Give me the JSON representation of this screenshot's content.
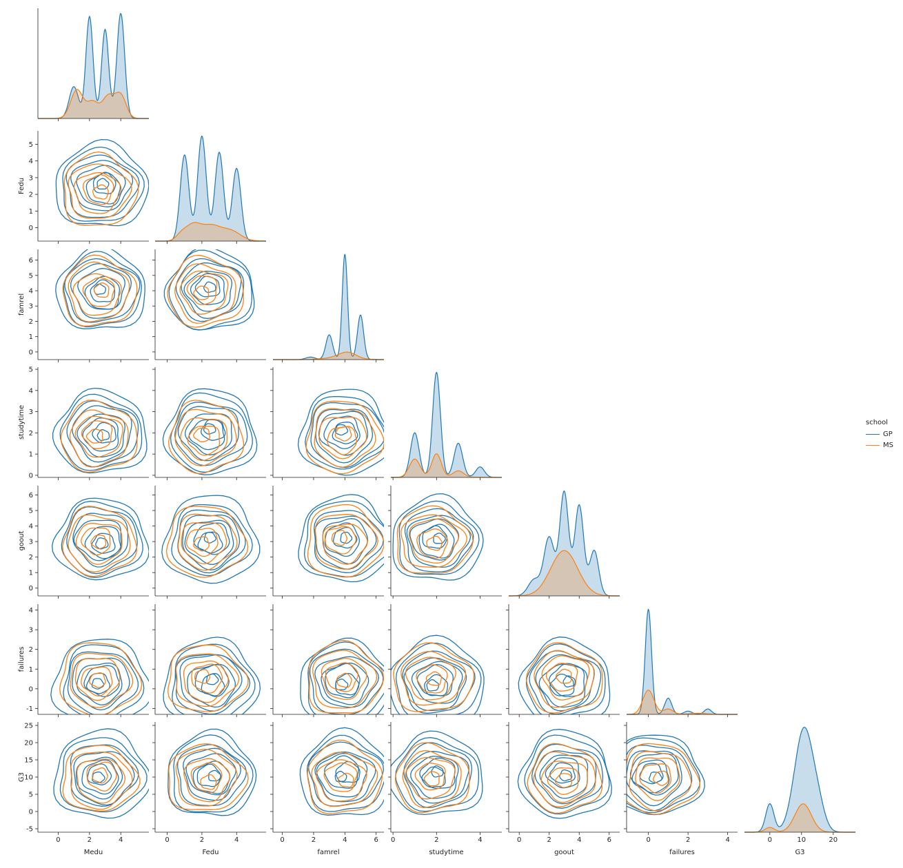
{
  "chart_data": {
    "type": "pairplot",
    "kind": "kde",
    "corner": true,
    "hue": "school",
    "legend": {
      "title": "school",
      "placement": "right",
      "entries": [
        {
          "name": "GP",
          "color": "#1f77b4"
        },
        {
          "name": "MS",
          "color": "#ff7f0e"
        }
      ]
    },
    "grid": false,
    "variables": [
      {
        "name": "Medu",
        "lim": [
          -1,
          6
        ],
        "ticks": [
          0,
          2,
          4
        ]
      },
      {
        "name": "Fedu",
        "lim": [
          -0.8,
          5.8
        ],
        "ticks": [
          0,
          1,
          2,
          3,
          4,
          5
        ]
      },
      {
        "name": "famrel",
        "lim": [
          -0.5,
          6.7
        ],
        "ticks": [
          0,
          1,
          2,
          3,
          4,
          5,
          6
        ]
      },
      {
        "name": "studytime",
        "lim": [
          -0.1,
          5.1
        ],
        "ticks": [
          0,
          1,
          2,
          3,
          4,
          5
        ]
      },
      {
        "name": "goout",
        "lim": [
          -0.5,
          6.6
        ],
        "ticks": [
          0,
          1,
          2,
          3,
          4,
          5,
          6
        ]
      },
      {
        "name": "failures",
        "lim": [
          -1.3,
          4.3
        ],
        "ticks": [
          -1,
          0,
          1,
          2,
          3,
          4
        ]
      },
      {
        "name": "G3",
        "lim": [
          -6,
          26
        ],
        "ticks": [
          -5,
          0,
          5,
          10,
          15,
          20,
          25
        ]
      }
    ],
    "bottom_ticks": [
      [
        0,
        2,
        4
      ],
      [
        0,
        2,
        4
      ],
      [
        0,
        2,
        4,
        6
      ],
      [
        0,
        2,
        4
      ],
      [
        0,
        2,
        4,
        6
      ],
      [
        0,
        2,
        4
      ],
      [
        0,
        10,
        20
      ]
    ],
    "diag_xlim": [
      [
        -1.3,
        5.8
      ],
      [
        -0.7,
        5.7
      ],
      [
        -0.6,
        6.5
      ],
      [
        -0.1,
        5.0
      ],
      [
        -0.7,
        6.7
      ],
      [
        -1.1,
        4.5
      ],
      [
        -8,
        27
      ]
    ],
    "diagonal": [
      {
        "variable": "Medu",
        "series": [
          {
            "name": "GP",
            "modes": [
              [
                1.0,
                0.1,
                0.3
              ],
              [
                2.0,
                0.32,
                0.23
              ],
              [
                3.0,
                0.28,
                0.23
              ],
              [
                4.0,
                0.33,
                0.25
              ]
            ]
          },
          {
            "name": "MS",
            "modes": [
              [
                1.2,
                0.09,
                0.4
              ],
              [
                2.2,
                0.05,
                0.35
              ],
              [
                3.2,
                0.07,
                0.4
              ],
              [
                4.0,
                0.07,
                0.35
              ]
            ]
          }
        ]
      },
      {
        "variable": "Fedu",
        "series": [
          {
            "name": "GP",
            "modes": [
              [
                1.0,
                0.32,
                0.25
              ],
              [
                2.0,
                0.39,
                0.25
              ],
              [
                3.0,
                0.33,
                0.25
              ],
              [
                4.0,
                0.27,
                0.25
              ]
            ]
          },
          {
            "name": "MS",
            "modes": [
              [
                0.8,
                0.02,
                0.3
              ],
              [
                1.5,
                0.06,
                0.45
              ],
              [
                2.5,
                0.05,
                0.5
              ],
              [
                3.6,
                0.04,
                0.6
              ]
            ]
          }
        ]
      },
      {
        "variable": "famrel",
        "series": [
          {
            "name": "GP",
            "modes": [
              [
                1.8,
                0.02,
                0.3
              ],
              [
                3.0,
                0.2,
                0.22
              ],
              [
                4.0,
                0.85,
                0.17
              ],
              [
                5.0,
                0.36,
                0.2
              ]
            ]
          },
          {
            "name": "MS",
            "modes": [
              [
                3.5,
                0.015,
                0.8
              ],
              [
                4.2,
                0.05,
                0.55
              ]
            ]
          }
        ]
      },
      {
        "variable": "studytime",
        "series": [
          {
            "name": "GP",
            "modes": [
              [
                1.0,
                0.34,
                0.2
              ],
              [
                2.0,
                0.8,
                0.18
              ],
              [
                3.0,
                0.26,
                0.2
              ],
              [
                4.0,
                0.08,
                0.2
              ]
            ]
          },
          {
            "name": "MS",
            "modes": [
              [
                1.0,
                0.14,
                0.25
              ],
              [
                2.0,
                0.18,
                0.22
              ],
              [
                3.0,
                0.05,
                0.25
              ]
            ]
          }
        ]
      },
      {
        "variable": "goout",
        "series": [
          {
            "name": "GP",
            "modes": [
              [
                1.0,
                0.05,
                0.4
              ],
              [
                2.0,
                0.18,
                0.35
              ],
              [
                3.0,
                0.32,
                0.3
              ],
              [
                4.0,
                0.28,
                0.3
              ],
              [
                5.0,
                0.14,
                0.3
              ]
            ]
          },
          {
            "name": "MS",
            "modes": [
              [
                3.0,
                0.14,
                0.9
              ]
            ]
          }
        ]
      },
      {
        "variable": "failures",
        "series": [
          {
            "name": "GP",
            "modes": [
              [
                0.0,
                1.95,
                0.16
              ],
              [
                1.0,
                0.3,
                0.18
              ],
              [
                2.0,
                0.06,
                0.2
              ],
              [
                3.0,
                0.1,
                0.18
              ]
            ]
          },
          {
            "name": "MS",
            "modes": [
              [
                0.0,
                0.45,
                0.28
              ],
              [
                1.0,
                0.1,
                0.25
              ],
              [
                2.5,
                0.02,
                0.4
              ]
            ]
          }
        ]
      },
      {
        "variable": "G3",
        "series": [
          {
            "name": "GP",
            "modes": [
              [
                0.0,
                0.018,
                1.3
              ],
              [
                10.8,
                0.066,
                3.0
              ],
              [
                15.5,
                0.01,
                2.0
              ]
            ]
          },
          {
            "name": "MS",
            "modes": [
              [
                0.0,
                0.003,
                1.5
              ],
              [
                10.5,
                0.018,
                2.6
              ]
            ]
          }
        ]
      }
    ],
    "diagonal_note_units": "modes are [center, peak density, width] in data units",
    "bivariate": {
      "GP": {
        "Medu": 2.75,
        "Fedu": 2.5,
        "famrel": 4.0,
        "studytime": 2.0,
        "goout": 3.1,
        "failures": 0.3,
        "G3": 10.5
      },
      "MS": {
        "Medu": 2.6,
        "Fedu": 2.2,
        "famrel": 3.9,
        "studytime": 1.8,
        "goout": 3.0,
        "failures": 0.5,
        "G3": 9.5
      }
    }
  }
}
